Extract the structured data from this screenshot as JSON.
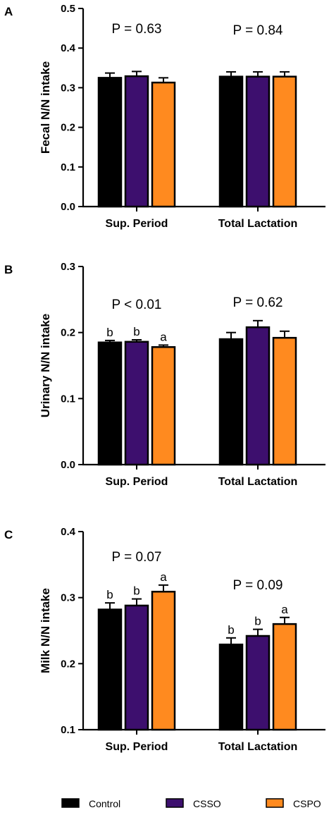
{
  "chart_data": [
    {
      "type": "bar",
      "panel": "A",
      "ylabel": "Fecal N/N intake",
      "ylim": [
        0.0,
        0.5
      ],
      "yticks": [
        "0.0",
        "0.1",
        "0.2",
        "0.3",
        "0.4",
        "0.5"
      ],
      "categories": [
        "Sup. Period",
        "Total Lactation"
      ],
      "p_values": [
        "P = 0.63",
        "P = 0.84"
      ],
      "series": [
        {
          "name": "Control",
          "values": [
            0.325,
            0.328
          ],
          "errors": [
            0.012,
            0.012
          ],
          "labels": [
            "",
            ""
          ]
        },
        {
          "name": "CSSO",
          "values": [
            0.329,
            0.328
          ],
          "errors": [
            0.012,
            0.012
          ],
          "labels": [
            "",
            ""
          ]
        },
        {
          "name": "CSPO",
          "values": [
            0.313,
            0.328
          ],
          "errors": [
            0.012,
            0.012
          ],
          "labels": [
            "",
            ""
          ]
        }
      ]
    },
    {
      "type": "bar",
      "panel": "B",
      "ylabel": "Urinary N/N intake",
      "ylim": [
        0.0,
        0.3
      ],
      "yticks": [
        "0.0",
        "0.1",
        "0.2",
        "0.3"
      ],
      "categories": [
        "Sup. Period",
        "Total Lactation"
      ],
      "p_values": [
        "P < 0.01",
        "P = 0.62"
      ],
      "series": [
        {
          "name": "Control",
          "values": [
            0.185,
            0.19
          ],
          "errors": [
            0.003,
            0.01
          ],
          "labels": [
            "b",
            ""
          ]
        },
        {
          "name": "CSSO",
          "values": [
            0.186,
            0.208
          ],
          "errors": [
            0.003,
            0.01
          ],
          "labels": [
            "b",
            ""
          ]
        },
        {
          "name": "CSPO",
          "values": [
            0.178,
            0.192
          ],
          "errors": [
            0.003,
            0.01
          ],
          "labels": [
            "a",
            ""
          ]
        }
      ]
    },
    {
      "type": "bar",
      "panel": "C",
      "ylabel": "Milk N/N intake",
      "ylim": [
        0.1,
        0.4
      ],
      "yticks": [
        "0.1",
        "0.2",
        "0.3",
        "0.4"
      ],
      "categories": [
        "Sup. Period",
        "Total Lactation"
      ],
      "p_values": [
        "P = 0.07",
        "P = 0.09"
      ],
      "series": [
        {
          "name": "Control",
          "values": [
            0.282,
            0.229
          ],
          "errors": [
            0.01,
            0.01
          ],
          "labels": [
            "b",
            "b"
          ]
        },
        {
          "name": "CSSO",
          "values": [
            0.288,
            0.242
          ],
          "errors": [
            0.01,
            0.01
          ],
          "labels": [
            "b",
            "b"
          ]
        },
        {
          "name": "CSPO",
          "values": [
            0.309,
            0.26
          ],
          "errors": [
            0.01,
            0.01
          ],
          "labels": [
            "a",
            "a"
          ]
        }
      ]
    }
  ],
  "legend": {
    "placement": "bottom",
    "items": [
      {
        "name": "Control",
        "color": "#000000"
      },
      {
        "name": "CSSO",
        "color": "#3d0f6e"
      },
      {
        "name": "CSPO",
        "color": "#ff8a1f"
      }
    ]
  },
  "colors": {
    "Control": "#000000",
    "CSSO": "#3d0f6e",
    "CSPO": "#ff8a1f"
  }
}
